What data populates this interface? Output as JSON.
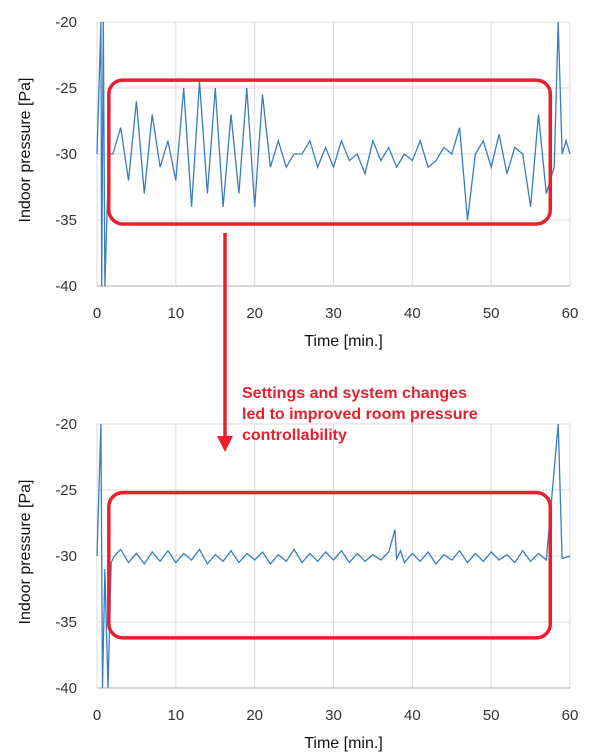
{
  "colors": {
    "series": "#3a7dbf",
    "highlight": "#e8202e",
    "grid": "#dcdcdc",
    "axis": "#bfbfbf"
  },
  "annotation": {
    "lines": [
      "Settings and system changes",
      "led to improved room pressure",
      "controllability"
    ]
  },
  "chart_data": [
    {
      "type": "line",
      "xlabel": "Time [min.]",
      "ylabel": "Indoor pressure [Pa]",
      "xlim": [
        0,
        60
      ],
      "ylim": [
        -40,
        -20
      ],
      "x_ticks": [
        0,
        10,
        20,
        30,
        40,
        50,
        60
      ],
      "y_ticks": [
        -20,
        -25,
        -30,
        -35,
        -40
      ],
      "x_tick_labels": [
        "0",
        "10",
        "20",
        "30",
        "40",
        "50",
        "60"
      ],
      "y_tick_labels": [
        "-20",
        "-25",
        "-30",
        "-35",
        "-40"
      ],
      "grid": true,
      "highlight_box": {
        "x_range": [
          1.5,
          57.5
        ],
        "y_range": [
          -35.3,
          -24.4
        ]
      },
      "series": [
        {
          "x": [
            0,
            0.5,
            0.6,
            0.8,
            1.0,
            1.5,
            2.0,
            3,
            4,
            5,
            6,
            7,
            8,
            9,
            10,
            11,
            12,
            13,
            14,
            15,
            16,
            17,
            18,
            19,
            20,
            21,
            22,
            23,
            24,
            25,
            26,
            27,
            28,
            29,
            30,
            31,
            32,
            33,
            34,
            35,
            36,
            37,
            38,
            39,
            40,
            41,
            42,
            43,
            44,
            45,
            46,
            47,
            48,
            49,
            50,
            51,
            52,
            53,
            54,
            55,
            56,
            57,
            58,
            58.5,
            59,
            59.5,
            60
          ],
          "y": [
            -30,
            -20,
            -40,
            -20,
            -40,
            -30,
            -30,
            -28,
            -32,
            -26,
            -33,
            -27,
            -31,
            -29,
            -32,
            -25,
            -34,
            -24.5,
            -33,
            -25,
            -34,
            -27,
            -33,
            -25,
            -34,
            -25.5,
            -31,
            -29,
            -31,
            -30,
            -30,
            -29,
            -31,
            -29.5,
            -31,
            -29,
            -30.5,
            -30,
            -31.5,
            -29,
            -30.5,
            -29.5,
            -31,
            -30,
            -30.5,
            -29,
            -31,
            -30.5,
            -29.5,
            -30,
            -28,
            -35,
            -30,
            -29,
            -31,
            -28.5,
            -31.5,
            -29.5,
            -30,
            -34,
            -27,
            -33,
            -31,
            -20,
            -30,
            -29,
            -30
          ]
        }
      ]
    },
    {
      "type": "line",
      "xlabel": "Time [min.]",
      "ylabel": "Indoor pressure [Pa]",
      "xlim": [
        0,
        60
      ],
      "ylim": [
        -40,
        -20
      ],
      "x_ticks": [
        0,
        10,
        20,
        30,
        40,
        50,
        60
      ],
      "y_ticks": [
        -20,
        -25,
        -30,
        -35,
        -40
      ],
      "x_tick_labels": [
        "0",
        "10",
        "20",
        "30",
        "40",
        "50",
        "60"
      ],
      "y_tick_labels": [
        "-20",
        "-25",
        "-30",
        "-35",
        "-40"
      ],
      "grid": true,
      "highlight_box": {
        "x_range": [
          1.5,
          57.5
        ],
        "y_range": [
          -36.2,
          -25.2
        ]
      },
      "series": [
        {
          "x": [
            0,
            0.5,
            0.7,
            1.0,
            1.4,
            1.8,
            2.2,
            3,
            4,
            5,
            6,
            7,
            8,
            9,
            10,
            11,
            12,
            13,
            14,
            15,
            16,
            17,
            18,
            19,
            20,
            21,
            22,
            23,
            24,
            25,
            26,
            27,
            28,
            29,
            30,
            31,
            32,
            33,
            34,
            35,
            36,
            37,
            37.8,
            38,
            38.5,
            39,
            40,
            41,
            42,
            43,
            44,
            45,
            46,
            47,
            48,
            49,
            50,
            51,
            52,
            53,
            54,
            55,
            56,
            57,
            58.5,
            59,
            60
          ],
          "y": [
            -30,
            -20,
            -40,
            -31,
            -40,
            -30.5,
            -30,
            -29.5,
            -30.5,
            -29.8,
            -30.6,
            -29.7,
            -30.4,
            -29.6,
            -30.5,
            -29.8,
            -30.3,
            -29.5,
            -30.6,
            -29.9,
            -30.4,
            -29.6,
            -30.5,
            -29.8,
            -30.3,
            -29.7,
            -30.6,
            -29.9,
            -30.4,
            -29.5,
            -30.5,
            -29.8,
            -30.4,
            -29.7,
            -30.3,
            -29.6,
            -30.5,
            -29.8,
            -30.4,
            -29.9,
            -30.3,
            -29.7,
            -28,
            -30.2,
            -29.6,
            -30.5,
            -29.8,
            -30.4,
            -29.7,
            -30.6,
            -29.9,
            -30.3,
            -29.6,
            -30.5,
            -29.8,
            -30.4,
            -29.7,
            -30.3,
            -29.9,
            -30.5,
            -29.6,
            -30.4,
            -29.8,
            -30.3,
            -20,
            -30.2,
            -30
          ]
        }
      ]
    }
  ]
}
